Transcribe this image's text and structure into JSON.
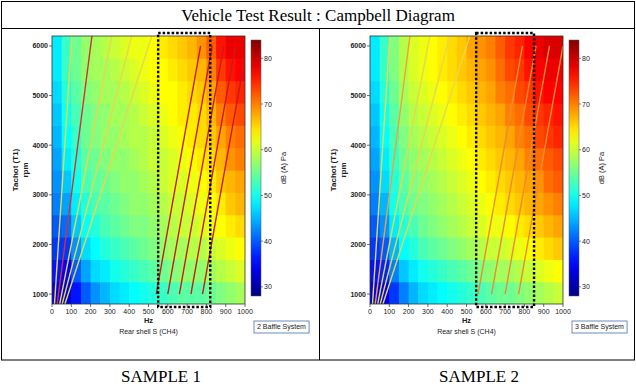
{
  "header": {
    "title": "Vehicle Test Result : Campbell Diagram"
  },
  "chart_data": [
    {
      "type": "heatmap",
      "caption": "SAMPLE 1",
      "x_label": "Hz",
      "x_source": "Rear shell S (CH4)",
      "y_label": "Tachot (T1)",
      "y_unit": "rpm",
      "xlim": [
        0,
        1000
      ],
      "xticks": [
        0,
        100,
        200,
        300,
        400,
        500,
        600,
        700,
        800,
        900,
        1000
      ],
      "ylim": [
        800,
        6200
      ],
      "yticks": [
        1000,
        2000,
        3000,
        4000,
        5000,
        6000
      ],
      "x_bins": [
        0,
        50,
        100,
        150,
        200,
        250,
        300,
        350,
        400,
        450,
        500,
        550,
        600,
        650,
        700,
        750,
        800,
        850,
        900,
        950,
        1000
      ],
      "y_bins": [
        800,
        1250,
        1700,
        2150,
        2600,
        3050,
        3500,
        3950,
        4400,
        4850,
        5300,
        5750,
        6200
      ],
      "cells": [
        [
          34,
          33,
          36,
          40,
          43,
          45,
          47,
          48,
          49,
          50,
          51,
          52,
          53,
          54,
          54,
          54,
          55,
          56,
          57,
          58
        ],
        [
          36,
          35,
          40,
          44,
          47,
          48,
          50,
          51,
          52,
          53,
          54,
          55,
          56,
          57,
          57,
          57,
          58,
          59,
          60,
          61
        ],
        [
          38,
          38,
          43,
          47,
          49,
          51,
          52,
          53,
          54,
          55,
          56,
          57,
          58,
          58,
          59,
          59,
          60,
          61,
          62,
          63
        ],
        [
          40,
          41,
          46,
          49,
          51,
          53,
          54,
          55,
          56,
          56,
          57,
          58,
          59,
          60,
          60,
          61,
          62,
          63,
          64,
          65
        ],
        [
          42,
          44,
          48,
          51,
          53,
          54,
          55,
          56,
          57,
          57,
          58,
          59,
          60,
          60,
          61,
          62,
          63,
          64,
          66,
          67
        ],
        [
          43,
          46,
          50,
          53,
          54,
          55,
          56,
          57,
          57,
          58,
          59,
          60,
          61,
          61,
          62,
          63,
          64,
          66,
          67,
          68
        ],
        [
          44,
          48,
          51,
          54,
          55,
          56,
          57,
          57,
          58,
          59,
          60,
          60,
          61,
          62,
          63,
          64,
          65,
          67,
          69,
          70
        ],
        [
          45,
          49,
          52,
          55,
          56,
          57,
          57,
          58,
          59,
          59,
          60,
          61,
          62,
          63,
          64,
          65,
          66,
          68,
          70,
          71
        ],
        [
          46,
          50,
          53,
          55,
          56,
          57,
          58,
          58,
          59,
          60,
          61,
          62,
          63,
          64,
          64,
          65,
          67,
          70,
          72,
          73
        ],
        [
          47,
          51,
          54,
          56,
          57,
          58,
          58,
          59,
          60,
          61,
          62,
          63,
          63,
          64,
          65,
          66,
          68,
          72,
          74,
          75
        ],
        [
          48,
          52,
          55,
          57,
          58,
          58,
          59,
          60,
          61,
          62,
          63,
          63,
          64,
          65,
          66,
          67,
          70,
          74,
          76,
          77
        ],
        [
          48,
          52,
          55,
          57,
          58,
          59,
          60,
          61,
          62,
          62,
          63,
          64,
          65,
          66,
          67,
          69,
          72,
          76,
          78,
          78
        ]
      ],
      "color_range": [
        28,
        84
      ],
      "color_ticks": [
        30,
        40,
        50,
        60,
        70,
        80
      ],
      "color_label": "dB (A) Pa",
      "series": [
        {
          "color": "#e8d848",
          "x": [
            13,
            103
          ],
          "values": [
            800,
            6200
          ]
        },
        {
          "color": "#d83030",
          "x": [
            27,
            207
          ],
          "values": [
            800,
            6200
          ]
        },
        {
          "color": "#e8d848",
          "x": [
            40,
            310
          ],
          "values": [
            800,
            6200
          ]
        },
        {
          "color": "#e8d848",
          "x": [
            53,
            413
          ],
          "values": [
            800,
            6200
          ]
        },
        {
          "color": "#e8d848",
          "x": [
            67,
            517
          ],
          "values": [
            800,
            6200
          ]
        },
        {
          "color": "#cc1a1a",
          "x": [
            540,
            770
          ],
          "values": [
            1000,
            6000
          ]
        },
        {
          "color": "#cc1a1a",
          "x": [
            600,
            830
          ],
          "values": [
            1000,
            6000
          ]
        },
        {
          "color": "#cc1a1a",
          "x": [
            660,
            890
          ],
          "values": [
            1000,
            6000
          ]
        },
        {
          "color": "#cc1a1a",
          "x": [
            720,
            950
          ],
          "values": [
            1000,
            6000
          ]
        },
        {
          "color": "#cc1a1a",
          "x": [
            780,
            1010
          ],
          "values": [
            1000,
            6000
          ]
        }
      ],
      "annotations": {
        "label": "2 Baffle System",
        "highlight_x": [
          550,
          820
        ]
      }
    },
    {
      "type": "heatmap",
      "caption": "SAMPLE 2",
      "x_label": "Hz",
      "x_source": "Rear shell S (CH4)",
      "y_label": "Tachot (T1)",
      "y_unit": "rpm",
      "xlim": [
        0,
        1000
      ],
      "xticks": [
        0,
        100,
        200,
        300,
        400,
        500,
        600,
        700,
        800,
        900,
        1000
      ],
      "ylim": [
        800,
        6200
      ],
      "yticks": [
        1000,
        2000,
        3000,
        4000,
        5000,
        6000
      ],
      "x_bins": [
        0,
        50,
        100,
        150,
        200,
        250,
        300,
        350,
        400,
        450,
        500,
        550,
        600,
        650,
        700,
        750,
        800,
        850,
        900,
        950,
        1000
      ],
      "y_bins": [
        800,
        1250,
        1700,
        2150,
        2600,
        3050,
        3500,
        3950,
        4400,
        4850,
        5300,
        5750,
        6200
      ],
      "cells": [
        [
          34,
          34,
          38,
          42,
          45,
          47,
          48,
          49,
          50,
          51,
          52,
          53,
          54,
          55,
          55,
          56,
          57,
          58,
          59,
          60
        ],
        [
          36,
          37,
          42,
          46,
          48,
          50,
          51,
          52,
          53,
          54,
          55,
          56,
          57,
          58,
          58,
          59,
          60,
          61,
          62,
          63
        ],
        [
          38,
          40,
          45,
          49,
          51,
          53,
          54,
          55,
          56,
          57,
          58,
          59,
          60,
          60,
          61,
          62,
          63,
          64,
          65,
          66
        ],
        [
          40,
          43,
          48,
          51,
          53,
          55,
          56,
          57,
          58,
          59,
          60,
          61,
          62,
          62,
          63,
          64,
          65,
          66,
          67,
          68
        ],
        [
          42,
          45,
          50,
          53,
          55,
          56,
          57,
          58,
          59,
          60,
          61,
          62,
          63,
          64,
          65,
          66,
          67,
          68,
          69,
          70
        ],
        [
          43,
          47,
          51,
          54,
          56,
          57,
          58,
          59,
          60,
          61,
          62,
          63,
          64,
          65,
          66,
          67,
          68,
          69,
          71,
          72
        ],
        [
          44,
          48,
          52,
          55,
          57,
          58,
          59,
          60,
          61,
          62,
          63,
          64,
          65,
          66,
          67,
          68,
          70,
          71,
          72,
          73
        ],
        [
          45,
          49,
          53,
          56,
          58,
          59,
          60,
          61,
          62,
          63,
          64,
          65,
          66,
          67,
          68,
          70,
          71,
          73,
          74,
          75
        ],
        [
          46,
          50,
          54,
          57,
          59,
          60,
          61,
          62,
          63,
          64,
          65,
          66,
          67,
          68,
          70,
          71,
          73,
          74,
          75,
          76
        ],
        [
          47,
          51,
          55,
          58,
          60,
          61,
          62,
          63,
          64,
          65,
          66,
          67,
          68,
          70,
          71,
          73,
          74,
          76,
          77,
          77
        ],
        [
          48,
          52,
          56,
          59,
          61,
          62,
          63,
          64,
          65,
          66,
          67,
          68,
          69,
          71,
          73,
          74,
          76,
          77,
          78,
          78
        ],
        [
          48,
          52,
          56,
          59,
          61,
          62,
          63,
          64,
          65,
          66,
          68,
          69,
          70,
          72,
          74,
          75,
          77,
          78,
          79,
          79
        ]
      ],
      "color_range": [
        28,
        84
      ],
      "color_ticks": [
        30,
        40,
        50,
        60,
        70,
        80
      ],
      "color_label": "dB (A) Pa",
      "series": [
        {
          "color": "#e8d848",
          "x": [
            13,
            103
          ],
          "values": [
            800,
            6200
          ]
        },
        {
          "color": "#f0a040",
          "x": [
            27,
            207
          ],
          "values": [
            800,
            6200
          ]
        },
        {
          "color": "#e8d848",
          "x": [
            40,
            310
          ],
          "values": [
            800,
            6200
          ]
        },
        {
          "color": "#e8d848",
          "x": [
            53,
            413
          ],
          "values": [
            800,
            6200
          ]
        },
        {
          "color": "#e8d848",
          "x": [
            67,
            517
          ],
          "values": [
            800,
            6200
          ]
        },
        {
          "color": "#f08a30",
          "x": [
            560,
            790
          ],
          "values": [
            1000,
            6000
          ]
        },
        {
          "color": "#f08a30",
          "x": [
            630,
            860
          ],
          "values": [
            1000,
            6000
          ]
        },
        {
          "color": "#f08a30",
          "x": [
            700,
            930
          ],
          "values": [
            1000,
            6000
          ]
        },
        {
          "color": "#f08a30",
          "x": [
            770,
            1000
          ],
          "values": [
            1000,
            6000
          ]
        }
      ],
      "annotations": {
        "label": "3 Baffle System",
        "highlight_x": [
          550,
          850
        ]
      }
    }
  ]
}
